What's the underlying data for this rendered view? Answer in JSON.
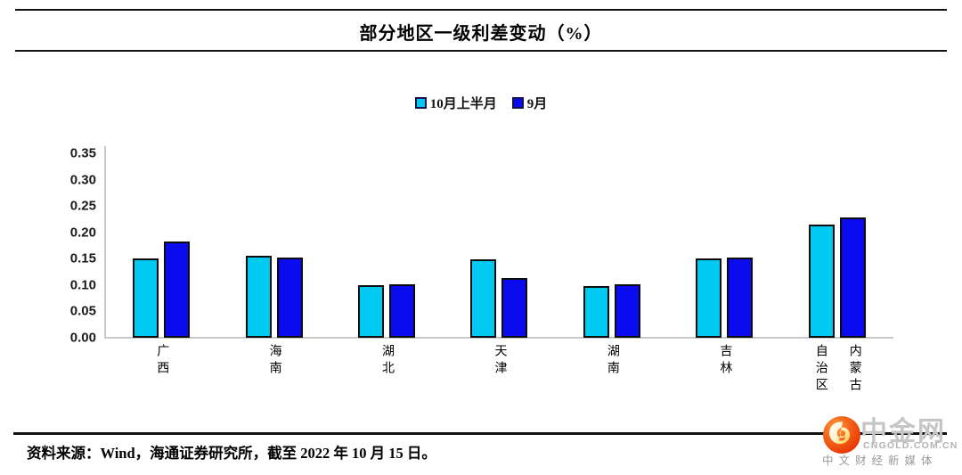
{
  "title": {
    "text": "部分地区一级利差变动（%）"
  },
  "chart_data": {
    "type": "bar",
    "title": "部分地区一级利差变动（%）",
    "categories": [
      "广西",
      "海南",
      "湖北",
      "天津",
      "湖南",
      "吉林",
      "内蒙古自治区"
    ],
    "series": [
      {
        "name": "10月上半月",
        "color": "#00C9F2",
        "values": [
          0.15,
          0.155,
          0.1,
          0.148,
          0.098,
          0.15,
          0.215
        ]
      },
      {
        "name": "9月",
        "color": "#0B0BF0",
        "values": [
          0.182,
          0.152,
          0.102,
          0.113,
          0.102,
          0.153,
          0.228
        ]
      }
    ],
    "xlabel": "",
    "ylabel": "",
    "ylim": [
      0,
      0.35
    ],
    "yticks": [
      "0.00",
      "0.05",
      "0.10",
      "0.15",
      "0.20",
      "0.25",
      "0.30",
      "0.35"
    ],
    "grid": false,
    "legend_position": "top"
  },
  "footer": {
    "source": "资料来源：Wind，海通证券研究所，截至 2022 年 10 月 15 日。"
  },
  "watermark": {
    "brand": "中金网",
    "domain": "CNGOLD.COM.CN",
    "tagline": "中文财经新媒体"
  },
  "colors": {
    "series1": "#00C9F2",
    "series2": "#0B0BF0",
    "bar_border": "#0d0d0d",
    "axis_line": "#c9c9c9",
    "rule_line": "#121212",
    "logo_orange": "#ED4A00",
    "logo_gold": "#FFC833"
  }
}
